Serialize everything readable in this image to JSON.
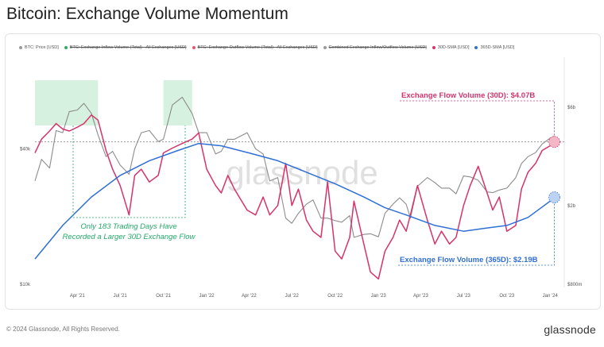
{
  "page": {
    "title": "Bitcoin: Exchange Volume Momentum",
    "copyright": "© 2024 Glassnode, All Rights Reserved.",
    "logo": "glassnode",
    "watermark": "glassnode"
  },
  "legend": [
    {
      "label": "BTC: Price [USD]",
      "color": "#9a9a9a",
      "struck": false
    },
    {
      "label": "BTC: Exchange Inflow Volume (Total) - All Exchanges [USD]",
      "color": "#2fae5f",
      "struck": true
    },
    {
      "label": "BTC: Exchange Outflow Volume (Total) - All Exchanges [USD]",
      "color": "#e05a6a",
      "struck": true
    },
    {
      "label": "Combined Exchange Inflow/Outflow Volume [USD]",
      "color": "#9a9a9a",
      "struck": true
    },
    {
      "label": "30D-SMA [USD]",
      "color": "#d6336c",
      "struck": false
    },
    {
      "label": "365D-SMA [USD]",
      "color": "#2f6fd6",
      "struck": false
    }
  ],
  "annotations": {
    "flow30": "Exchange Flow Volume (30D): $4.07B",
    "flow365": "Exchange Flow Volume (365D): $2.19B",
    "note_line1": "Only 183 Trading Days Have",
    "note_line2": "Recorded a Larger 30D Exchange Flow"
  },
  "colors": {
    "price": "#8c8c8c",
    "sma30": "#d6336c",
    "sma365": "#2f6fd6",
    "highlight": "#c8ecd6",
    "note": "#23a86a"
  },
  "chart_data": {
    "type": "line",
    "x_tick_labels": [
      "Apr '21",
      "Jul '21",
      "Oct '21",
      "Jan '22",
      "Apr '22",
      "Jul '22",
      "Oct '22",
      "Jan '23",
      "Apr '23",
      "Jul '23",
      "Oct '23",
      "Jan '24"
    ],
    "y_left_ticks": [
      "$40k",
      "$10k"
    ],
    "y_right_ticks": [
      "$6b",
      "$2b",
      "$800m"
    ],
    "highlight_ranges": [
      [
        "2021-01-01",
        "2021-05-15"
      ],
      [
        "2021-10-01",
        "2021-12-01"
      ]
    ],
    "series": [
      {
        "name": "BTC: Price [USD]",
        "axis": "left",
        "x": [
          "2021-01-01",
          "2021-01-15",
          "2021-02-01",
          "2021-02-15",
          "2021-03-01",
          "2021-03-15",
          "2021-04-01",
          "2021-04-15",
          "2021-05-01",
          "2021-05-15",
          "2021-06-01",
          "2021-06-15",
          "2021-07-01",
          "2021-07-20",
          "2021-08-01",
          "2021-08-15",
          "2021-09-01",
          "2021-09-20",
          "2021-10-01",
          "2021-10-20",
          "2021-11-10",
          "2021-12-01",
          "2021-12-15",
          "2022-01-01",
          "2022-01-20",
          "2022-02-01",
          "2022-02-15",
          "2022-03-01",
          "2022-03-28",
          "2022-04-15",
          "2022-05-01",
          "2022-05-15",
          "2022-06-01",
          "2022-06-18",
          "2022-07-01",
          "2022-07-15",
          "2022-08-01",
          "2022-08-15",
          "2022-09-01",
          "2022-09-15",
          "2022-10-01",
          "2022-10-15",
          "2022-11-01",
          "2022-11-10",
          "2022-12-01",
          "2022-12-15",
          "2023-01-01",
          "2023-01-15",
          "2023-02-01",
          "2023-02-15",
          "2023-03-01",
          "2023-03-10",
          "2023-03-25",
          "2023-04-15",
          "2023-05-01",
          "2023-05-15",
          "2023-06-01",
          "2023-06-15",
          "2023-07-01",
          "2023-07-15",
          "2023-08-01",
          "2023-08-20",
          "2023-09-01",
          "2023-09-15",
          "2023-10-01",
          "2023-10-20",
          "2023-11-01",
          "2023-11-15",
          "2023-12-01",
          "2023-12-15",
          "2024-01-01",
          "2024-01-10"
        ],
        "values": [
          29000,
          36000,
          33000,
          48000,
          47000,
          58000,
          59000,
          63000,
          57000,
          46000,
          37000,
          39000,
          34000,
          31000,
          40000,
          47000,
          48000,
          43000,
          44000,
          62000,
          67000,
          57000,
          47000,
          47000,
          38000,
          39000,
          44000,
          44000,
          47000,
          40000,
          38000,
          29000,
          30000,
          20000,
          19000,
          21000,
          23000,
          24000,
          20000,
          20000,
          19500,
          19200,
          20500,
          16500,
          17000,
          17100,
          16600,
          21000,
          23000,
          24500,
          23000,
          20000,
          27500,
          30000,
          28500,
          27000,
          27000,
          25500,
          30500,
          30200,
          29200,
          26000,
          25800,
          26500,
          27000,
          30000,
          34500,
          37000,
          38500,
          42000,
          44500,
          45500
        ]
      },
      {
        "name": "30D-SMA [USD]",
        "axis": "right",
        "x": [
          "2021-01-01",
          "2021-01-15",
          "2021-02-01",
          "2021-02-15",
          "2021-03-01",
          "2021-03-15",
          "2021-04-01",
          "2021-04-15",
          "2021-05-01",
          "2021-05-15",
          "2021-06-01",
          "2021-06-15",
          "2021-07-01",
          "2021-07-20",
          "2021-08-01",
          "2021-08-15",
          "2021-09-01",
          "2021-09-20",
          "2021-10-01",
          "2021-10-20",
          "2021-11-10",
          "2021-12-01",
          "2021-12-15",
          "2022-01-01",
          "2022-01-20",
          "2022-02-01",
          "2022-02-15",
          "2022-03-01",
          "2022-03-28",
          "2022-04-15",
          "2022-05-01",
          "2022-05-15",
          "2022-06-01",
          "2022-06-18",
          "2022-07-01",
          "2022-07-15",
          "2022-08-01",
          "2022-08-15",
          "2022-09-01",
          "2022-09-15",
          "2022-10-01",
          "2022-10-15",
          "2022-11-01",
          "2022-11-10",
          "2022-12-01",
          "2022-12-15",
          "2023-01-01",
          "2023-01-15",
          "2023-02-01",
          "2023-02-15",
          "2023-03-01",
          "2023-03-10",
          "2023-03-25",
          "2023-04-15",
          "2023-05-01",
          "2023-05-15",
          "2023-06-01",
          "2023-06-15",
          "2023-07-01",
          "2023-07-15",
          "2023-08-01",
          "2023-08-20",
          "2023-09-01",
          "2023-09-15",
          "2023-10-01",
          "2023-10-20",
          "2023-11-01",
          "2023-11-15",
          "2023-12-01",
          "2023-12-15",
          "2024-01-01",
          "2024-01-10"
        ],
        "values": [
          3.6,
          4.2,
          4.6,
          5.0,
          4.7,
          4.6,
          4.8,
          5.0,
          5.5,
          5.2,
          3.7,
          3.0,
          2.5,
          1.8,
          2.8,
          3.0,
          2.6,
          2.8,
          3.6,
          3.8,
          4.0,
          4.2,
          4.5,
          3.0,
          2.5,
          2.3,
          2.8,
          2.4,
          1.9,
          1.8,
          2.2,
          1.8,
          2.0,
          3.2,
          2.0,
          2.4,
          1.7,
          1.5,
          1.4,
          2.6,
          1.2,
          1.1,
          1.4,
          2.1,
          1.3,
          0.95,
          0.88,
          1.2,
          1.4,
          1.7,
          1.5,
          1.8,
          2.5,
          1.7,
          1.3,
          1.5,
          1.3,
          1.4,
          2.0,
          2.5,
          3.1,
          2.3,
          1.9,
          2.2,
          1.5,
          1.6,
          2.4,
          2.9,
          3.2,
          3.7,
          3.9,
          4.07
        ]
      },
      {
        "name": "365D-SMA [USD]",
        "axis": "right",
        "x": [
          "2021-01-01",
          "2021-03-01",
          "2021-05-01",
          "2021-07-01",
          "2021-09-01",
          "2021-11-01",
          "2021-12-15",
          "2022-02-01",
          "2022-04-01",
          "2022-06-01",
          "2022-08-01",
          "2022-10-01",
          "2022-12-01",
          "2023-01-15",
          "2023-03-01",
          "2023-05-01",
          "2023-07-01",
          "2023-08-15",
          "2023-10-01",
          "2023-11-15",
          "2024-01-01",
          "2024-01-10"
        ],
        "values": [
          1.1,
          1.6,
          2.2,
          2.8,
          3.3,
          3.7,
          4.0,
          3.9,
          3.6,
          3.3,
          2.9,
          2.55,
          2.2,
          1.95,
          1.8,
          1.6,
          1.5,
          1.55,
          1.6,
          1.75,
          2.1,
          2.19
        ]
      }
    ]
  }
}
